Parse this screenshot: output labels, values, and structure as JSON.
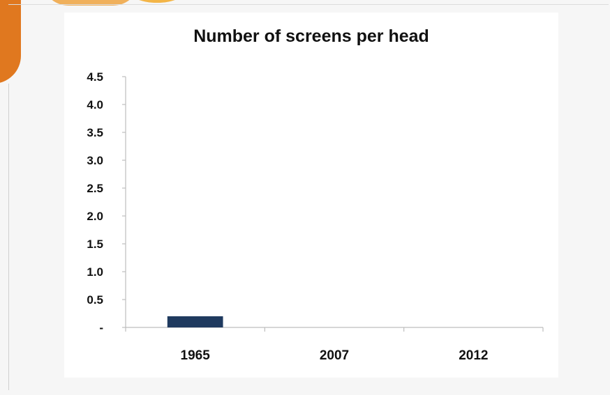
{
  "chart_data": {
    "type": "bar",
    "title": "Number of screens per head",
    "categories": [
      "1965",
      "2007",
      "2012"
    ],
    "values": [
      0.2,
      0,
      0
    ],
    "ylim": [
      0,
      4.5
    ],
    "yticks": [
      0,
      0.5,
      1.0,
      1.5,
      2.0,
      2.5,
      3.0,
      3.5,
      4.0,
      4.5
    ],
    "ytick_labels": [
      "-",
      "0.5",
      "1.0",
      "1.5",
      "2.0",
      "2.5",
      "3.0",
      "3.5",
      "4.0",
      "4.5"
    ],
    "xlabel": "",
    "ylabel": "",
    "grid": false,
    "legend": "none",
    "bar_color": "#1f3a5f"
  }
}
